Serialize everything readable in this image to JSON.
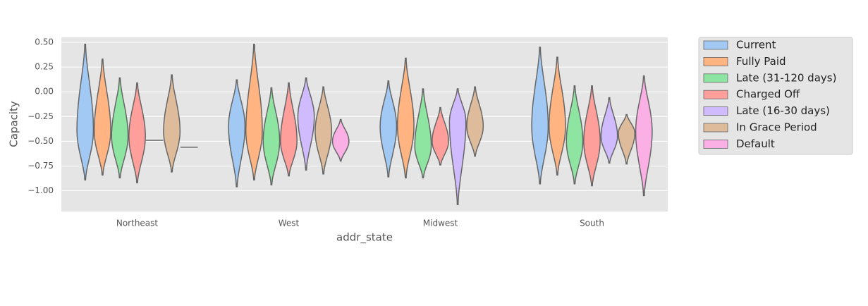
{
  "chart_data": {
    "type": "violin",
    "x_label": "addr_state",
    "y_label": "Capacity",
    "categories": [
      "Northeast",
      "West",
      "Midwest",
      "South"
    ],
    "ylim": [
      -1.21,
      0.55
    ],
    "yticks": [
      {
        "value": 0.5,
        "label": "0.50"
      },
      {
        "value": 0.25,
        "label": "0.25"
      },
      {
        "value": 0,
        "label": "0.00"
      },
      {
        "value": -0.25,
        "label": "−0.25"
      },
      {
        "value": -0.5,
        "label": "−0.50"
      },
      {
        "value": -0.75,
        "label": "−0.75"
      },
      {
        "value": -1,
        "label": "−1.00"
      }
    ],
    "grid": true,
    "legend": "outside-upper-right",
    "series": [
      {
        "name": "Current",
        "color": "#a1c9f4",
        "high": [
          0.48,
          0.12,
          0.11,
          0.45
        ],
        "low": [
          -0.89,
          -0.96,
          -0.86,
          -0.93
        ],
        "mode": [
          -0.39,
          -0.35,
          -0.35,
          -0.35
        ]
      },
      {
        "name": "Fully Paid",
        "color": "#ffb482",
        "high": [
          0.33,
          0.48,
          0.34,
          0.35
        ],
        "low": [
          -0.84,
          -0.89,
          -0.87,
          -0.84
        ],
        "mode": [
          -0.4,
          -0.4,
          -0.35,
          -0.35
        ]
      },
      {
        "name": "Late (31-120 days)",
        "color": "#8de5a1",
        "high": [
          0.14,
          0.04,
          0.03,
          0.06
        ],
        "low": [
          -0.87,
          -0.94,
          -0.87,
          -0.93
        ],
        "mode": [
          -0.45,
          -0.5,
          -0.55,
          -0.5
        ]
      },
      {
        "name": "Charged Off",
        "color": "#ff9f9b",
        "high": [
          0.09,
          0.09,
          -0.16,
          0.06
        ],
        "low": [
          -0.92,
          -0.85,
          -0.74,
          -0.95
        ],
        "mode": [
          -0.45,
          -0.5,
          -0.5,
          -0.5
        ]
      },
      {
        "name": "Late (16-30 days)",
        "color": "#d0bbff",
        "high": [
          -0.49,
          0.14,
          0.03,
          -0.06
        ],
        "low": [
          -0.49,
          -0.79,
          -1.14,
          -0.72
        ],
        "mode": [
          -0.49,
          -0.25,
          -0.3,
          -0.45
        ]
      },
      {
        "name": "In Grace Period",
        "color": "#debb9b",
        "high": [
          0.17,
          0.05,
          0.05,
          -0.23
        ],
        "low": [
          -0.81,
          -0.83,
          -0.65,
          -0.73
        ],
        "mode": [
          -0.4,
          -0.4,
          -0.35,
          -0.42
        ]
      },
      {
        "name": "Default",
        "color": "#fab0e4",
        "high": [
          -0.56,
          -0.28,
          null,
          0.16
        ],
        "low": [
          -0.56,
          -0.7,
          null,
          -1.05
        ],
        "mode": [
          -0.56,
          -0.5,
          null,
          -0.4
        ]
      }
    ]
  }
}
